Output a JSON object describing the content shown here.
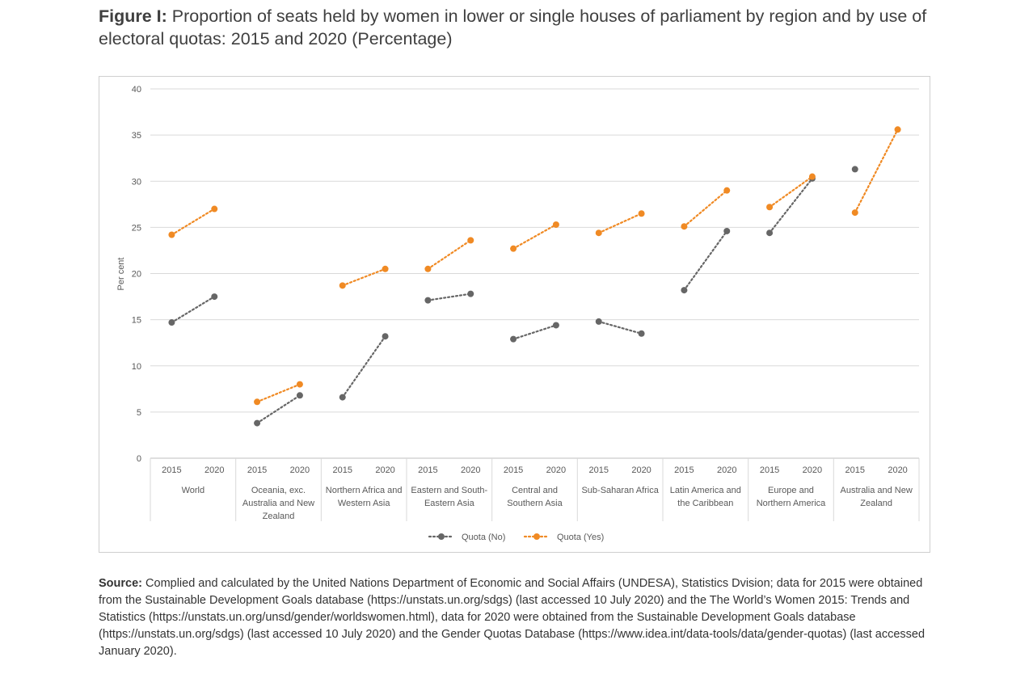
{
  "figure": {
    "label": "Figure I:",
    "title": "Proportion of seats held by women in lower or single houses of parliament by region and by use of electoral quotas: 2015 and 2020 (Percentage)"
  },
  "source": {
    "label": "Source:",
    "text": "Complied and calculated by the United Nations Department of Economic and Social Affairs (UNDESA), Statistics Dvision; data for 2015 were obtained from the Sustainable Development Goals database (https://unstats.un.org/sdgs) (last accessed 10 July 2020) and the The World’s Women 2015: Trends and Statistics (https://unstats.un.org/unsd/gender/worldswomen.html), data for 2020 were obtained from the Sustainable Development Goals database (https://unstats.un.org/sdgs) (last accessed 10 July 2020) and the Gender Quotas Database (https://www.idea.int/data-tools/data/gender-quotas) (last accessed January 2020)."
  },
  "chart_data": {
    "type": "line",
    "ylabel": "Per cent",
    "ylim": [
      0,
      40
    ],
    "yticks": [
      0,
      5,
      10,
      15,
      20,
      25,
      30,
      35,
      40
    ],
    "grid": true,
    "legend_position": "bottom",
    "years": [
      "2015",
      "2020"
    ],
    "groups": [
      {
        "label": [
          "World"
        ]
      },
      {
        "label": [
          "Oceania, exc.",
          "Australia and New",
          "Zealand"
        ]
      },
      {
        "label": [
          "Northern Africa and",
          "Western Asia"
        ]
      },
      {
        "label": [
          "Eastern and South-",
          "Eastern Asia"
        ]
      },
      {
        "label": [
          "Central and",
          "Southern Asia"
        ]
      },
      {
        "label": [
          "Sub-Saharan Africa"
        ]
      },
      {
        "label": [
          "Latin America and",
          "the Caribbean"
        ]
      },
      {
        "label": [
          "Europe and",
          "Northern America"
        ]
      },
      {
        "label": [
          "Australia and New",
          "Zealand"
        ]
      }
    ],
    "series": [
      {
        "name": "Quota (No)",
        "color": "#666666",
        "values": [
          [
            14.7,
            17.5
          ],
          [
            3.8,
            6.8
          ],
          [
            6.6,
            13.2
          ],
          [
            17.1,
            17.8
          ],
          [
            12.9,
            14.4
          ],
          [
            14.8,
            13.5
          ],
          [
            18.2,
            24.6
          ],
          [
            24.4,
            30.3
          ],
          [
            31.3,
            null
          ]
        ]
      },
      {
        "name": "Quota (Yes)",
        "color": "#f08a24",
        "values": [
          [
            24.2,
            27.0
          ],
          [
            6.1,
            8.0
          ],
          [
            18.7,
            20.5
          ],
          [
            20.5,
            23.6
          ],
          [
            22.7,
            25.3
          ],
          [
            24.4,
            26.5
          ],
          [
            25.1,
            29.0
          ],
          [
            27.2,
            30.5
          ],
          [
            26.6,
            35.6
          ]
        ]
      }
    ]
  }
}
